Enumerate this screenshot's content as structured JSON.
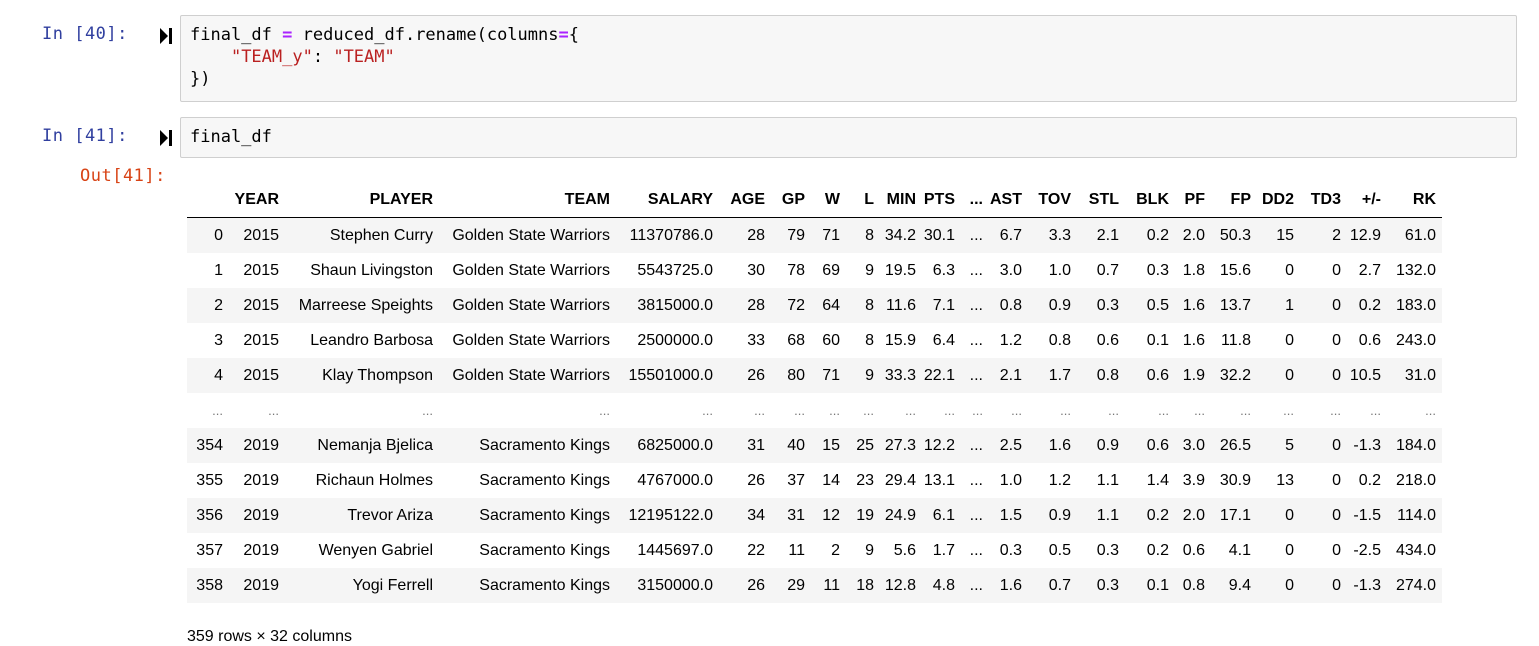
{
  "cells": [
    {
      "prompt": "In [40]:",
      "code_lines": [
        [
          {
            "t": "p",
            "v": "final_df "
          },
          {
            "t": "op",
            "v": "="
          },
          {
            "t": "p",
            "v": " reduced_df.rename(columns"
          },
          {
            "t": "op",
            "v": "="
          },
          {
            "t": "p",
            "v": "{"
          }
        ],
        [
          {
            "t": "p",
            "v": "    "
          },
          {
            "t": "str",
            "v": "\"TEAM_y\""
          },
          {
            "t": "p",
            "v": ": "
          },
          {
            "t": "str",
            "v": "\"TEAM\""
          }
        ],
        [
          {
            "t": "p",
            "v": "})"
          }
        ]
      ]
    },
    {
      "prompt": "In [41]:",
      "code_lines": [
        [
          {
            "t": "p",
            "v": "final_df"
          }
        ]
      ],
      "out_prompt": "Out[41]:"
    }
  ],
  "dataframe": {
    "columns": [
      "",
      "YEAR",
      "PLAYER",
      "TEAM",
      "SALARY",
      "AGE",
      "GP",
      "W",
      "L",
      "MIN",
      "PTS",
      "...",
      "AST",
      "TOV",
      "STL",
      "BLK",
      "PF",
      "FP",
      "DD2",
      "TD3",
      "+/-",
      "RK"
    ],
    "rows": [
      [
        "0",
        "2015",
        "Stephen Curry",
        "Golden State Warriors",
        "11370786.0",
        "28",
        "79",
        "71",
        "8",
        "34.2",
        "30.1",
        "...",
        "6.7",
        "3.3",
        "2.1",
        "0.2",
        "2.0",
        "50.3",
        "15",
        "2",
        "12.9",
        "61.0"
      ],
      [
        "1",
        "2015",
        "Shaun Livingston",
        "Golden State Warriors",
        "5543725.0",
        "30",
        "78",
        "69",
        "9",
        "19.5",
        "6.3",
        "...",
        "3.0",
        "1.0",
        "0.7",
        "0.3",
        "1.8",
        "15.6",
        "0",
        "0",
        "2.7",
        "132.0"
      ],
      [
        "2",
        "2015",
        "Marreese Speights",
        "Golden State Warriors",
        "3815000.0",
        "28",
        "72",
        "64",
        "8",
        "11.6",
        "7.1",
        "...",
        "0.8",
        "0.9",
        "0.3",
        "0.5",
        "1.6",
        "13.7",
        "1",
        "0",
        "0.2",
        "183.0"
      ],
      [
        "3",
        "2015",
        "Leandro Barbosa",
        "Golden State Warriors",
        "2500000.0",
        "33",
        "68",
        "60",
        "8",
        "15.9",
        "6.4",
        "...",
        "1.2",
        "0.8",
        "0.6",
        "0.1",
        "1.6",
        "11.8",
        "0",
        "0",
        "0.6",
        "243.0"
      ],
      [
        "4",
        "2015",
        "Klay Thompson",
        "Golden State Warriors",
        "15501000.0",
        "26",
        "80",
        "71",
        "9",
        "33.3",
        "22.1",
        "...",
        "2.1",
        "1.7",
        "0.8",
        "0.6",
        "1.9",
        "32.2",
        "0",
        "0",
        "10.5",
        "31.0"
      ],
      [
        "...",
        "...",
        "...",
        "...",
        "...",
        "...",
        "...",
        "...",
        "...",
        "...",
        "...",
        "...",
        "...",
        "...",
        "...",
        "...",
        "...",
        "...",
        "...",
        "...",
        "...",
        "..."
      ],
      [
        "354",
        "2019",
        "Nemanja Bjelica",
        "Sacramento Kings",
        "6825000.0",
        "31",
        "40",
        "15",
        "25",
        "27.3",
        "12.2",
        "...",
        "2.5",
        "1.6",
        "0.9",
        "0.6",
        "3.0",
        "26.5",
        "5",
        "0",
        "-1.3",
        "184.0"
      ],
      [
        "355",
        "2019",
        "Richaun Holmes",
        "Sacramento Kings",
        "4767000.0",
        "26",
        "37",
        "14",
        "23",
        "29.4",
        "13.1",
        "...",
        "1.0",
        "1.2",
        "1.1",
        "1.4",
        "3.9",
        "30.9",
        "13",
        "0",
        "0.2",
        "218.0"
      ],
      [
        "356",
        "2019",
        "Trevor Ariza",
        "Sacramento Kings",
        "12195122.0",
        "34",
        "31",
        "12",
        "19",
        "24.9",
        "6.1",
        "...",
        "1.5",
        "0.9",
        "1.1",
        "0.2",
        "2.0",
        "17.1",
        "0",
        "0",
        "-1.5",
        "114.0"
      ],
      [
        "357",
        "2019",
        "Wenyen Gabriel",
        "Sacramento Kings",
        "1445697.0",
        "22",
        "11",
        "2",
        "9",
        "5.6",
        "1.7",
        "...",
        "0.3",
        "0.5",
        "0.3",
        "0.2",
        "0.6",
        "4.1",
        "0",
        "0",
        "-2.5",
        "434.0"
      ],
      [
        "358",
        "2019",
        "Yogi Ferrell",
        "Sacramento Kings",
        "3150000.0",
        "26",
        "29",
        "11",
        "18",
        "12.8",
        "4.8",
        "...",
        "1.6",
        "0.7",
        "0.3",
        "0.1",
        "0.8",
        "9.4",
        "0",
        "0",
        "-1.3",
        "274.0"
      ]
    ],
    "shape_text": "359 rows × 32 columns"
  },
  "icons": {
    "run": "run-cell-icon"
  },
  "colors": {
    "prompt_in": "#303f9f",
    "prompt_out": "#d84315",
    "op": "#aa22ff",
    "string": "#ba2121",
    "cell_bg": "#f7f7f7",
    "cell_border": "#cfcfcf",
    "stripe": "#f5f5f5"
  }
}
